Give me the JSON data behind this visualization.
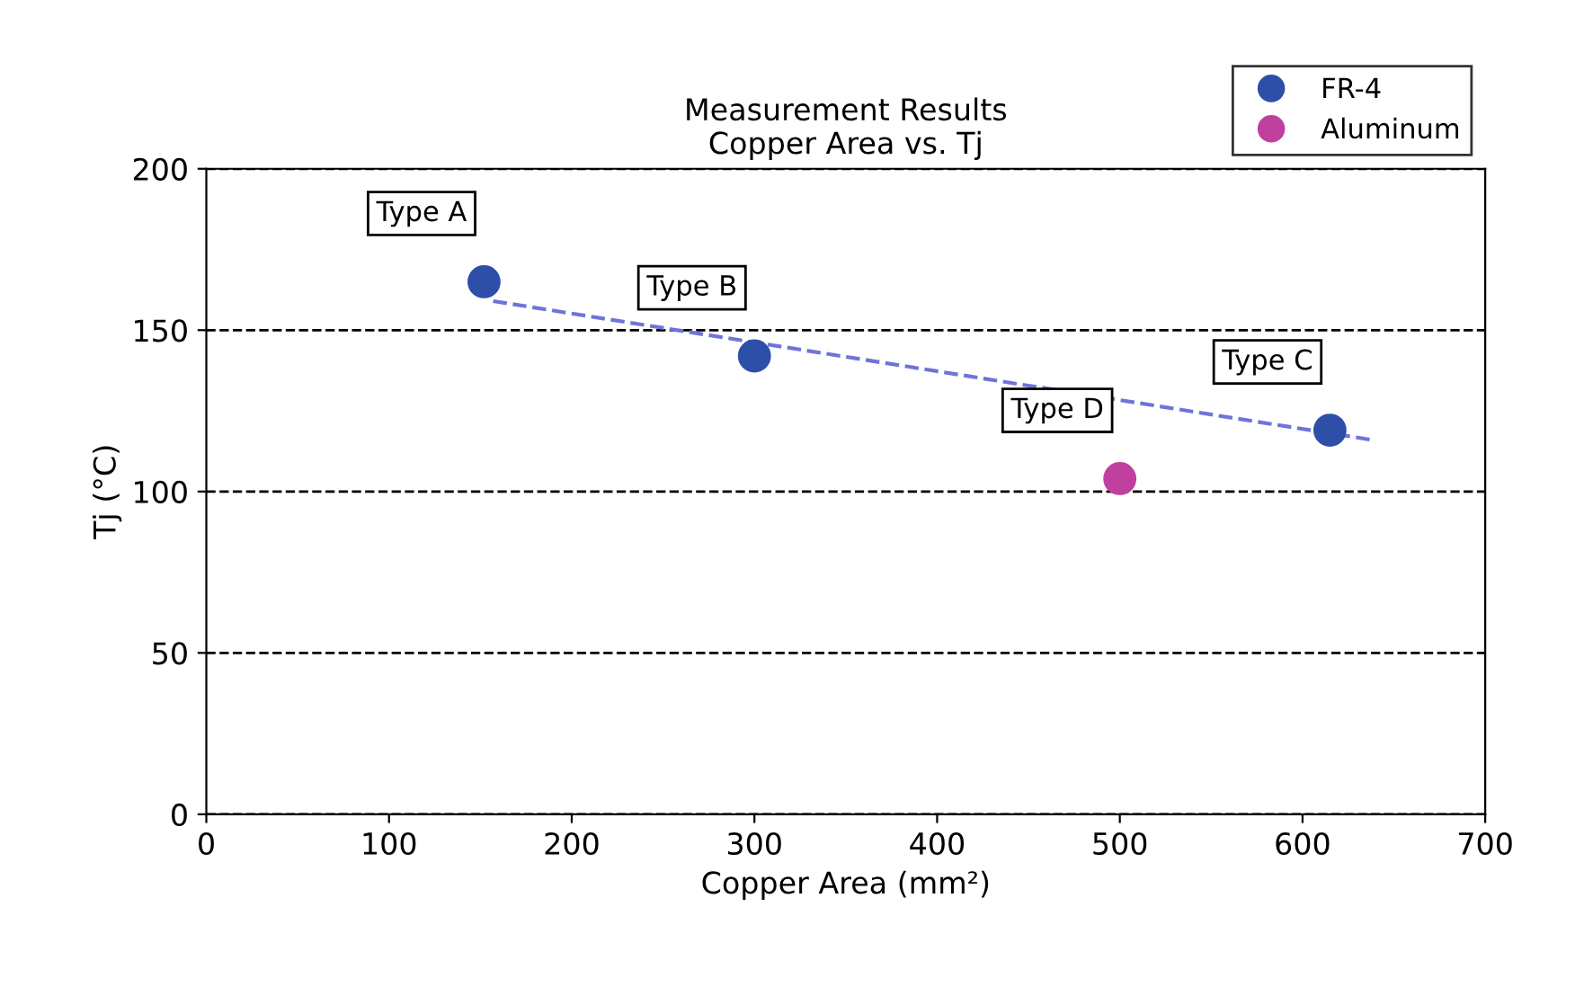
{
  "chart_data": {
    "type": "scatter",
    "title": "Measurement Results\nCopper Area vs. Tj",
    "xlabel": "Copper Area (mm²)",
    "ylabel": "Tj (°C)",
    "series": [
      {
        "name": "FR-4",
        "color": "#2e4fa8",
        "x": [
          152,
          300,
          615
        ],
        "values": [
          165,
          142,
          119
        ]
      },
      {
        "name": "Aluminum",
        "color": "#c040a0",
        "x": [
          500
        ],
        "values": [
          104
        ]
      },
      {
        "type": "line",
        "color": "#6f74d8",
        "line_style": "dashed",
        "marker": "none",
        "x": [
          157,
          638
        ],
        "values": [
          159,
          116
        ]
      }
    ],
    "annotations": [
      {
        "text": "Type A",
        "x": 152,
        "y": 165
      },
      {
        "text": "Type B",
        "x": 300,
        "y": 142
      },
      {
        "text": "Type C",
        "x": 615,
        "y": 119
      },
      {
        "text": "Type D",
        "x": 500,
        "y": 104
      }
    ],
    "xlim": [
      0,
      700
    ],
    "xticks": [
      0,
      100,
      200,
      300,
      400,
      500,
      600,
      700
    ],
    "ylim": [
      0,
      200
    ],
    "yticks": [
      0,
      50,
      100,
      150,
      200
    ],
    "grid": "y",
    "legend": "top right",
    "marker": "circle"
  }
}
